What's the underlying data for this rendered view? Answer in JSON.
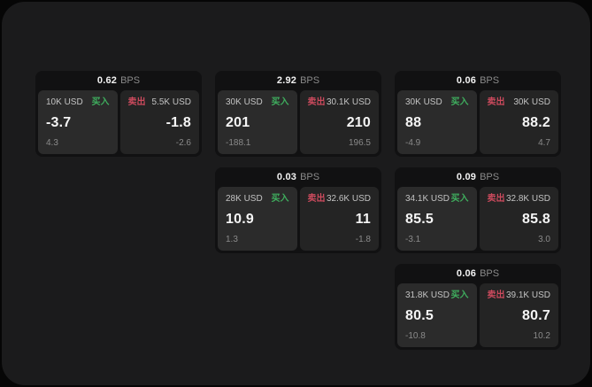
{
  "labels": {
    "bps": "BPS",
    "buy": "买入",
    "sell": "卖出"
  },
  "colors": {
    "buy_green": "#3fae5e",
    "sell_red": "#cb4a5d",
    "panel_bg": "#1b1b1c",
    "card_bg": "#111112",
    "buy_panel_bg": "#2b2b2b",
    "sell_panel_bg": "#242424"
  },
  "cards": [
    {
      "col": 1,
      "row": 1,
      "spread": "0.62",
      "buy": {
        "amount": "10K USD",
        "price": "-3.7",
        "delta": "4.3"
      },
      "sell": {
        "amount": "5.5K USD",
        "price": "-1.8",
        "delta": "-2.6"
      }
    },
    {
      "col": 2,
      "row": 1,
      "spread": "2.92",
      "buy": {
        "amount": "30K USD",
        "price": "201",
        "delta": "-188.1"
      },
      "sell": {
        "amount": "30.1K USD",
        "price": "210",
        "delta": "196.5"
      }
    },
    {
      "col": 3,
      "row": 1,
      "spread": "0.06",
      "buy": {
        "amount": "30K USD",
        "price": "88",
        "delta": "-4.9"
      },
      "sell": {
        "amount": "30K USD",
        "price": "88.2",
        "delta": "4.7"
      }
    },
    {
      "col": 2,
      "row": 2,
      "spread": "0.03",
      "buy": {
        "amount": "28K USD",
        "price": "10.9",
        "delta": "1.3"
      },
      "sell": {
        "amount": "32.6K USD",
        "price": "11",
        "delta": "-1.8"
      }
    },
    {
      "col": 3,
      "row": 2,
      "spread": "0.09",
      "buy": {
        "amount": "34.1K USD",
        "price": "85.5",
        "delta": "-3.1"
      },
      "sell": {
        "amount": "32.8K USD",
        "price": "85.8",
        "delta": "3.0"
      }
    },
    {
      "col": 3,
      "row": 3,
      "spread": "0.06",
      "buy": {
        "amount": "31.8K USD",
        "price": "80.5",
        "delta": "-10.8"
      },
      "sell": {
        "amount": "39.1K USD",
        "price": "80.7",
        "delta": "10.2"
      }
    }
  ]
}
